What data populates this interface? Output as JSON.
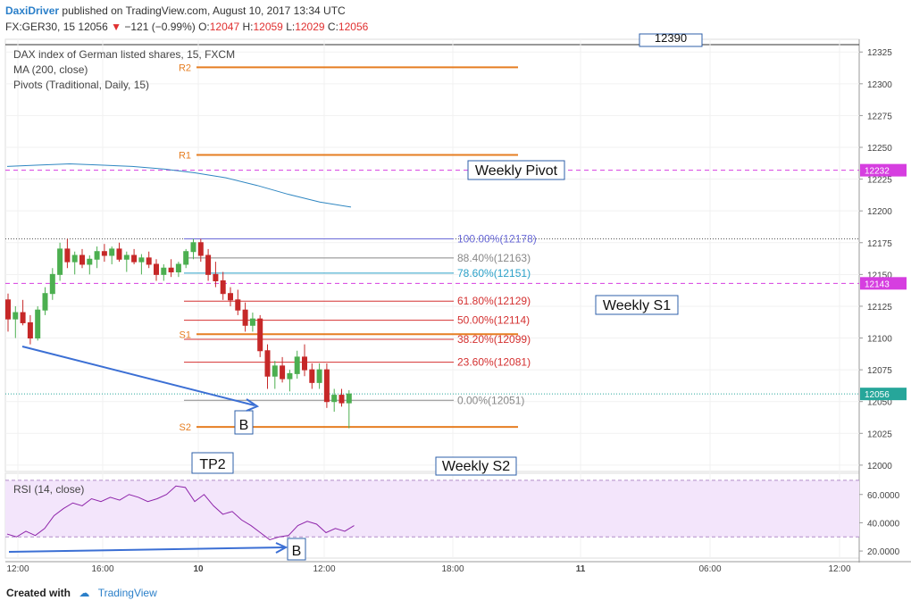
{
  "header": {
    "author": "DaxiDriver",
    "published": "published on TradingView.com, August 10, 2017 13:34 UTC",
    "symbol": "FX:GER30, 15",
    "last": "12056",
    "change": "−121 (−0.99%)",
    "o_label": "O:",
    "o_val": "12047",
    "h_label": "H:",
    "h_val": "12059",
    "l_label": "L:",
    "l_val": "12029",
    "c_label": "C:",
    "c_val": "12056"
  },
  "legend": {
    "line1": "DAX index of German listed shares, 15, FXCM",
    "line2": "MA (200, close)",
    "line3": "Pivots (Traditional, Daily, 15)",
    "rsi": "RSI (14, close)"
  },
  "footer": {
    "created": "Created with",
    "brand": "TradingView"
  },
  "colors": {
    "up": "#26a69a",
    "down": "#ef5350",
    "candle_up": "#4caf50",
    "candle_down": "#c62828",
    "pivot": "#e67e22",
    "magenta": "#d63ee0",
    "ma": "#2e86c1",
    "rsi": "#8e24aa",
    "rsi_band": "#f3e5fb"
  },
  "chart_data": {
    "type": "line",
    "price_axis": {
      "ticks": [
        "12325",
        "12300",
        "12275",
        "12250",
        "12225",
        "12200",
        "12175",
        "12150",
        "12125",
        "12100",
        "12075",
        "12050",
        "12025",
        "12000"
      ],
      "ylim": [
        11995,
        12335
      ]
    },
    "time_axis": {
      "ticks": [
        "12:00",
        "16:00",
        "10",
        "12:00",
        "18:00",
        "11",
        "06:00",
        "12:00"
      ]
    },
    "price_labels": [
      {
        "text": "12232",
        "value": 12232,
        "color": "#d63ee0"
      },
      {
        "text": "12143",
        "value": 12143,
        "color": "#d63ee0"
      },
      {
        "text": "12056",
        "value": 12056,
        "color": "#26a69a"
      }
    ],
    "pivots": [
      {
        "name": "R2",
        "value": 12313
      },
      {
        "name": "R1",
        "value": 12244
      },
      {
        "name": "S1",
        "value": 12103
      },
      {
        "name": "S2",
        "value": 12030
      }
    ],
    "fibonacci": [
      {
        "label": "100.00%(12178)",
        "value": 12178,
        "color": "#6a6ad8"
      },
      {
        "label": "88.40%(12163)",
        "value": 12163,
        "color": "#888888"
      },
      {
        "label": "78.60%(12151)",
        "value": 12151,
        "color": "#2aa0c8"
      },
      {
        "label": "61.80%(12129)",
        "value": 12129,
        "color": "#d43030"
      },
      {
        "label": "50.00%(12114)",
        "value": 12114,
        "color": "#d43030"
      },
      {
        "label": "38.20%(12099)",
        "value": 12099,
        "color": "#d43030"
      },
      {
        "label": "23.60%(12081)",
        "value": 12081,
        "color": "#d43030"
      },
      {
        "label": "0.00%(12051)",
        "value": 12051,
        "color": "#888888"
      }
    ],
    "annotations": [
      {
        "text": "Weekly Pivot"
      },
      {
        "text": "Weekly S1"
      },
      {
        "text": "Weekly S2"
      },
      {
        "text": "TP2"
      },
      {
        "text": "B"
      },
      {
        "text": "B"
      },
      {
        "text": "12390"
      }
    ],
    "candles": [
      [
        12130,
        12135,
        12105,
        12115
      ],
      [
        12115,
        12125,
        12100,
        12120
      ],
      [
        12120,
        12130,
        12110,
        12112
      ],
      [
        12112,
        12118,
        12095,
        12100
      ],
      [
        12100,
        12125,
        12098,
        12122
      ],
      [
        12122,
        12140,
        12118,
        12135
      ],
      [
        12135,
        12155,
        12130,
        12150
      ],
      [
        12150,
        12175,
        12145,
        12170
      ],
      [
        12170,
        12178,
        12155,
        12160
      ],
      [
        12160,
        12168,
        12150,
        12165
      ],
      [
        12165,
        12170,
        12155,
        12158
      ],
      [
        12158,
        12165,
        12150,
        12162
      ],
      [
        12162,
        12172,
        12155,
        12168
      ],
      [
        12168,
        12174,
        12160,
        12165
      ],
      [
        12165,
        12172,
        12158,
        12170
      ],
      [
        12170,
        12175,
        12160,
        12162
      ],
      [
        12162,
        12168,
        12152,
        12165
      ],
      [
        12165,
        12170,
        12158,
        12160
      ],
      [
        12160,
        12166,
        12150,
        12163
      ],
      [
        12163,
        12168,
        12155,
        12158
      ],
      [
        12158,
        12162,
        12145,
        12150
      ],
      [
        12150,
        12158,
        12145,
        12155
      ],
      [
        12155,
        12162,
        12148,
        12152
      ],
      [
        12152,
        12160,
        12148,
        12158
      ],
      [
        12158,
        12170,
        12155,
        12168
      ],
      [
        12168,
        12178,
        12162,
        12175
      ],
      [
        12175,
        12178,
        12160,
        12165
      ],
      [
        12165,
        12170,
        12145,
        12150
      ],
      [
        12150,
        12160,
        12140,
        12145
      ],
      [
        12145,
        12152,
        12130,
        12135
      ],
      [
        12135,
        12140,
        12125,
        12130
      ],
      [
        12130,
        12138,
        12118,
        12122
      ],
      [
        12122,
        12128,
        12105,
        12110
      ],
      [
        12110,
        12120,
        12105,
        12115
      ],
      [
        12115,
        12118,
        12085,
        12090
      ],
      [
        12090,
        12095,
        12060,
        12070
      ],
      [
        12070,
        12082,
        12060,
        12078
      ],
      [
        12078,
        12085,
        12065,
        12068
      ],
      [
        12068,
        12075,
        12058,
        12072
      ],
      [
        12072,
        12090,
        12068,
        12085
      ],
      [
        12085,
        12095,
        12070,
        12075
      ],
      [
        12075,
        12080,
        12060,
        12065
      ],
      [
        12065,
        12080,
        12060,
        12075
      ],
      [
        12075,
        12080,
        12045,
        12050
      ],
      [
        12050,
        12060,
        12042,
        12055
      ],
      [
        12055,
        12060,
        12046,
        12049
      ],
      [
        12049,
        12059,
        12029,
        12056
      ]
    ],
    "ma200": [
      12235,
      12236,
      12237,
      12236,
      12235,
      12233,
      12230,
      12226,
      12220,
      12213,
      12207,
      12203
    ],
    "rsi": {
      "ticks": [
        "60.0000",
        "40.0000",
        "20.0000"
      ],
      "ylim": [
        15,
        75
      ],
      "bands": [
        70,
        30
      ],
      "values": [
        32,
        30,
        34,
        31,
        36,
        45,
        50,
        54,
        52,
        57,
        55,
        58,
        56,
        60,
        58,
        55,
        57,
        60,
        66,
        65,
        55,
        60,
        52,
        46,
        48,
        42,
        38,
        33,
        28,
        30,
        31,
        38,
        41,
        39,
        33,
        36,
        34,
        38
      ]
    }
  }
}
